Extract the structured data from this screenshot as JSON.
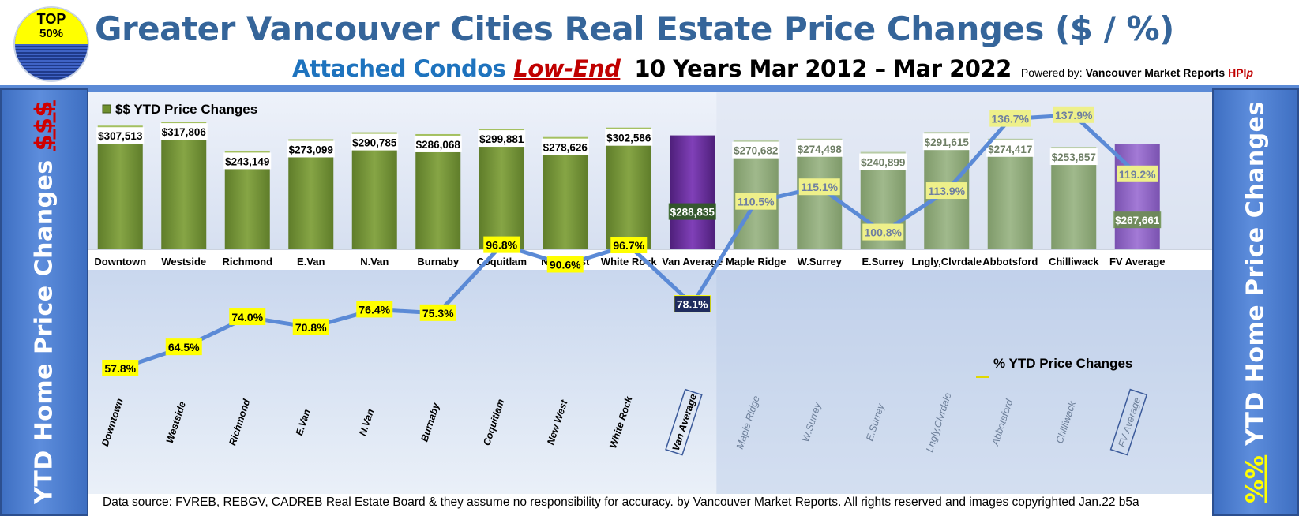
{
  "badge": {
    "line1": "TOP",
    "line2": "50%"
  },
  "header": {
    "title": "Greater Vancouver Cities Real Estate Price Changes ($ / %)",
    "subtitle_part1": "Attached Condos",
    "subtitle_part2": "Low-End",
    "subtitle_part3": "10 Years Mar 2012 – Mar 2022",
    "powered_prefix": "Powered by:",
    "powered_name": "Vancouver Market Reports",
    "powered_hpi": "HPI",
    "powered_hpi_suffix": "p"
  },
  "sidebar": {
    "left_main": "YTD Home Price Changes",
    "left_accent": "$$$",
    "right_accent": "%%",
    "right_main": "YTD Home Price  Changes"
  },
  "footer": {
    "text": "Data source: FVREB, REBGV, CADREB Real Estate Board & they assume no responsibility for accuracy. by Vancouver Market Reports. All rights reserved and  images copyrighted Jan.22 b5a"
  },
  "colors": {
    "van_bar": "#7e9d3f",
    "fv_bar": "#98b182",
    "avg_bar_van": "#7030a0",
    "avg_bar_fv": "#9366c8",
    "line": "#5b8ad6",
    "label_yellow": "#ffff00",
    "label_fv_yellow": "#f0f08a",
    "avg_label_bg": "#1f2b5e"
  },
  "chart_data": [
    {
      "type": "bar",
      "legend": "$$ YTD Price Changes",
      "categories": [
        "Downtown",
        "Westside",
        "Richmond",
        "E.Van",
        "N.Van",
        "Burnaby",
        "Coquitlam",
        "New West",
        "White Rock",
        "Van Average",
        "Maple Ridge",
        "W.Surrey",
        "E.Surrey",
        "Lngly,Clvrdale",
        "Abbotsford",
        "Chilliwack",
        "FV Average"
      ],
      "values": [
        307513,
        317806,
        243149,
        273099,
        290785,
        286068,
        299881,
        278626,
        302586,
        288835,
        270682,
        274498,
        240899,
        291615,
        274417,
        253857,
        267661
      ],
      "labels": [
        "$307,513",
        "$317,806",
        "$243,149",
        "$273,099",
        "$290,785",
        "$286,068",
        "$299,881",
        "$278,626",
        "$302,586",
        "$288,835",
        "$270,682",
        "$274,498",
        "$240,899",
        "$291,615",
        "$274,417",
        "$253,857",
        "$267,661"
      ],
      "groups": [
        "van",
        "van",
        "van",
        "van",
        "van",
        "van",
        "van",
        "van",
        "van",
        "van-avg",
        "fv",
        "fv",
        "fv",
        "fv",
        "fv",
        "fv",
        "fv-avg"
      ]
    },
    {
      "type": "line",
      "legend": "% YTD Price Changes",
      "categories": [
        "Downtown",
        "Westside",
        "Richmond",
        "E.Van",
        "N.Van",
        "Burnaby",
        "Coquitlam",
        "New West",
        "White Rock",
        "Van Average",
        "Maple Ridge",
        "W.Surrey",
        "E.Surrey",
        "Lngly,Clvrdale",
        "Abbotsford",
        "Chilliwack",
        "FV Average"
      ],
      "values": [
        57.8,
        64.5,
        74.0,
        70.8,
        76.4,
        75.3,
        96.8,
        90.6,
        96.7,
        78.1,
        110.5,
        115.1,
        100.8,
        113.9,
        136.7,
        137.9,
        119.2
      ],
      "labels": [
        "57.8%",
        "64.5%",
        "74.0%",
        "70.8%",
        "76.4%",
        "75.3%",
        "96.8%",
        "90.6%",
        "96.7%",
        "78.1%",
        "110.5%",
        "115.1%",
        "100.8%",
        "113.9%",
        "136.7%",
        "137.9%",
        "119.2%"
      ]
    }
  ]
}
